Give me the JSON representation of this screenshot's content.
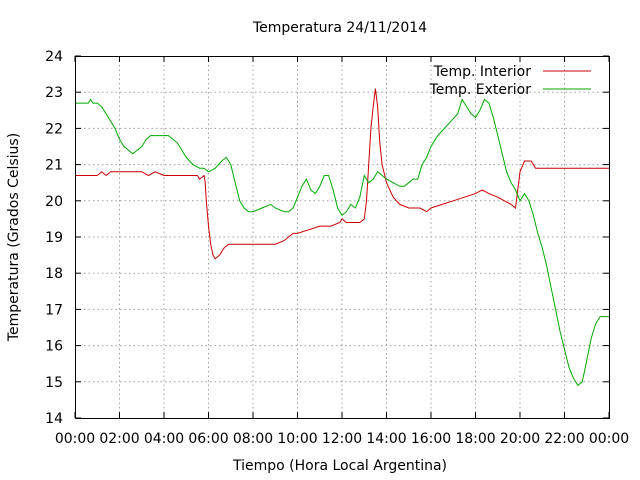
{
  "chart_data": {
    "type": "line",
    "title": "Temperatura 24/11/2014",
    "xlabel": "Tiempo (Hora Local Argentina)",
    "ylabel": "Temperatura (Grados Celsius)",
    "xlim": [
      0,
      24
    ],
    "ylim": [
      14,
      24
    ],
    "x_ticks": [
      "00:00",
      "02:00",
      "04:00",
      "06:00",
      "08:00",
      "10:00",
      "12:00",
      "14:00",
      "16:00",
      "18:00",
      "20:00",
      "22:00",
      "00:00"
    ],
    "y_ticks": [
      "14",
      "15",
      "16",
      "17",
      "18",
      "19",
      "20",
      "21",
      "22",
      "23",
      "24"
    ],
    "grid": true,
    "legend_position": "top-right",
    "series": [
      {
        "name": "Temp. Interior",
        "color": "#cc0000",
        "points": [
          [
            0.0,
            20.7
          ],
          [
            1.0,
            20.7
          ],
          [
            1.2,
            20.8
          ],
          [
            1.4,
            20.7
          ],
          [
            1.6,
            20.8
          ],
          [
            2.0,
            20.8
          ],
          [
            3.0,
            20.8
          ],
          [
            3.3,
            20.7
          ],
          [
            3.6,
            20.8
          ],
          [
            4.0,
            20.7
          ],
          [
            5.0,
            20.7
          ],
          [
            5.5,
            20.7
          ],
          [
            5.6,
            20.6
          ],
          [
            5.8,
            20.7
          ],
          [
            5.85,
            20.5
          ],
          [
            5.9,
            20.0
          ],
          [
            6.0,
            19.3
          ],
          [
            6.1,
            18.8
          ],
          [
            6.2,
            18.5
          ],
          [
            6.3,
            18.4
          ],
          [
            6.5,
            18.5
          ],
          [
            6.7,
            18.7
          ],
          [
            6.9,
            18.8
          ],
          [
            7.5,
            18.8
          ],
          [
            8.0,
            18.8
          ],
          [
            9.0,
            18.8
          ],
          [
            9.4,
            18.9
          ],
          [
            9.8,
            19.1
          ],
          [
            10.0,
            19.1
          ],
          [
            10.5,
            19.2
          ],
          [
            11.0,
            19.3
          ],
          [
            11.5,
            19.3
          ],
          [
            11.9,
            19.4
          ],
          [
            12.0,
            19.5
          ],
          [
            12.2,
            19.4
          ],
          [
            12.5,
            19.4
          ],
          [
            12.8,
            19.4
          ],
          [
            13.0,
            19.5
          ],
          [
            13.1,
            20.0
          ],
          [
            13.2,
            21.0
          ],
          [
            13.3,
            22.0
          ],
          [
            13.4,
            22.6
          ],
          [
            13.5,
            23.1
          ],
          [
            13.6,
            22.6
          ],
          [
            13.7,
            21.6
          ],
          [
            13.8,
            21.0
          ],
          [
            14.0,
            20.5
          ],
          [
            14.3,
            20.1
          ],
          [
            14.6,
            19.9
          ],
          [
            15.0,
            19.8
          ],
          [
            15.5,
            19.8
          ],
          [
            15.8,
            19.7
          ],
          [
            16.0,
            19.8
          ],
          [
            16.5,
            19.9
          ],
          [
            17.0,
            20.0
          ],
          [
            17.5,
            20.1
          ],
          [
            18.0,
            20.2
          ],
          [
            18.3,
            20.3
          ],
          [
            18.6,
            20.2
          ],
          [
            19.0,
            20.1
          ],
          [
            19.3,
            20.0
          ],
          [
            19.6,
            19.9
          ],
          [
            19.8,
            19.8
          ],
          [
            20.0,
            20.8
          ],
          [
            20.2,
            21.1
          ],
          [
            20.5,
            21.1
          ],
          [
            20.7,
            20.9
          ],
          [
            21.0,
            20.9
          ],
          [
            22.0,
            20.9
          ],
          [
            23.0,
            20.9
          ],
          [
            24.0,
            20.9
          ]
        ]
      },
      {
        "name": "Temp. Exterior",
        "color": "#00aa00",
        "points": [
          [
            0.0,
            22.7
          ],
          [
            0.6,
            22.7
          ],
          [
            0.7,
            22.8
          ],
          [
            0.8,
            22.7
          ],
          [
            1.0,
            22.7
          ],
          [
            1.2,
            22.6
          ],
          [
            1.4,
            22.4
          ],
          [
            1.6,
            22.2
          ],
          [
            1.8,
            22.0
          ],
          [
            2.0,
            21.7
          ],
          [
            2.2,
            21.5
          ],
          [
            2.4,
            21.4
          ],
          [
            2.6,
            21.3
          ],
          [
            2.8,
            21.4
          ],
          [
            3.0,
            21.5
          ],
          [
            3.2,
            21.7
          ],
          [
            3.4,
            21.8
          ],
          [
            3.8,
            21.8
          ],
          [
            4.0,
            21.8
          ],
          [
            4.2,
            21.8
          ],
          [
            4.4,
            21.7
          ],
          [
            4.6,
            21.6
          ],
          [
            4.8,
            21.4
          ],
          [
            5.0,
            21.2
          ],
          [
            5.3,
            21.0
          ],
          [
            5.6,
            20.9
          ],
          [
            5.8,
            20.9
          ],
          [
            6.0,
            20.8
          ],
          [
            6.3,
            20.9
          ],
          [
            6.6,
            21.1
          ],
          [
            6.8,
            21.2
          ],
          [
            7.0,
            21.0
          ],
          [
            7.2,
            20.5
          ],
          [
            7.4,
            20.0
          ],
          [
            7.6,
            19.8
          ],
          [
            7.8,
            19.7
          ],
          [
            8.0,
            19.7
          ],
          [
            8.4,
            19.8
          ],
          [
            8.8,
            19.9
          ],
          [
            9.0,
            19.8
          ],
          [
            9.4,
            19.7
          ],
          [
            9.6,
            19.7
          ],
          [
            9.8,
            19.8
          ],
          [
            10.0,
            20.1
          ],
          [
            10.2,
            20.4
          ],
          [
            10.4,
            20.6
          ],
          [
            10.6,
            20.3
          ],
          [
            10.8,
            20.2
          ],
          [
            11.0,
            20.4
          ],
          [
            11.2,
            20.7
          ],
          [
            11.4,
            20.7
          ],
          [
            11.6,
            20.3
          ],
          [
            11.8,
            19.8
          ],
          [
            12.0,
            19.6
          ],
          [
            12.2,
            19.7
          ],
          [
            12.4,
            19.9
          ],
          [
            12.6,
            19.8
          ],
          [
            12.8,
            20.1
          ],
          [
            13.0,
            20.7
          ],
          [
            13.2,
            20.5
          ],
          [
            13.4,
            20.6
          ],
          [
            13.6,
            20.8
          ],
          [
            13.8,
            20.7
          ],
          [
            14.0,
            20.6
          ],
          [
            14.3,
            20.5
          ],
          [
            14.6,
            20.4
          ],
          [
            14.8,
            20.4
          ],
          [
            15.0,
            20.5
          ],
          [
            15.2,
            20.6
          ],
          [
            15.4,
            20.6
          ],
          [
            15.6,
            21.0
          ],
          [
            15.8,
            21.2
          ],
          [
            16.0,
            21.5
          ],
          [
            16.3,
            21.8
          ],
          [
            16.6,
            22.0
          ],
          [
            16.9,
            22.2
          ],
          [
            17.2,
            22.4
          ],
          [
            17.4,
            22.8
          ],
          [
            17.6,
            22.6
          ],
          [
            17.8,
            22.4
          ],
          [
            18.0,
            22.3
          ],
          [
            18.2,
            22.5
          ],
          [
            18.4,
            22.8
          ],
          [
            18.6,
            22.7
          ],
          [
            18.8,
            22.3
          ],
          [
            19.0,
            21.8
          ],
          [
            19.2,
            21.3
          ],
          [
            19.4,
            20.8
          ],
          [
            19.6,
            20.5
          ],
          [
            19.8,
            20.3
          ],
          [
            20.0,
            20.0
          ],
          [
            20.2,
            20.2
          ],
          [
            20.4,
            20.0
          ],
          [
            20.6,
            19.6
          ],
          [
            20.8,
            19.1
          ],
          [
            21.0,
            18.7
          ],
          [
            21.2,
            18.2
          ],
          [
            21.4,
            17.6
          ],
          [
            21.6,
            17.0
          ],
          [
            21.8,
            16.4
          ],
          [
            22.0,
            15.9
          ],
          [
            22.2,
            15.4
          ],
          [
            22.4,
            15.1
          ],
          [
            22.6,
            14.9
          ],
          [
            22.8,
            15.0
          ],
          [
            23.0,
            15.6
          ],
          [
            23.2,
            16.2
          ],
          [
            23.4,
            16.6
          ],
          [
            23.6,
            16.8
          ],
          [
            24.0,
            16.8
          ]
        ]
      }
    ]
  }
}
